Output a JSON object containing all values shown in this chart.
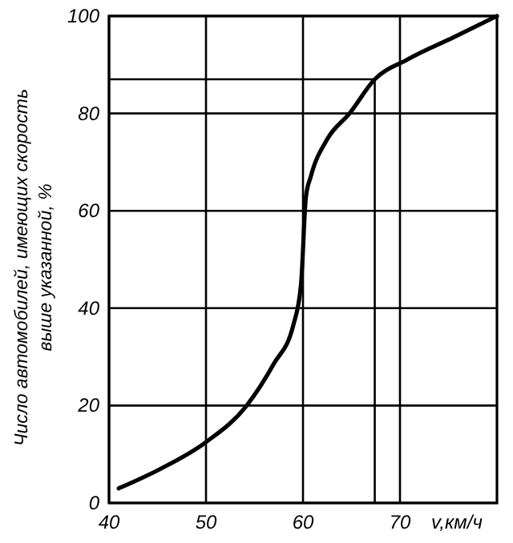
{
  "chart_data": {
    "type": "line",
    "xlabel": "v,км/ч",
    "ylabel": "Число автомобилей, имеющих скорость\nвыше указанной, %",
    "xlim": [
      40,
      80
    ],
    "ylim": [
      0,
      100
    ],
    "xticks": [
      40,
      50,
      60,
      70
    ],
    "yticks": [
      0,
      20,
      40,
      60,
      80,
      100
    ],
    "grid": true,
    "marker": "none",
    "line_style": "solid",
    "ref_lines": [
      {
        "axis": "y",
        "value": 87
      },
      {
        "axis": "x",
        "value": 67.4
      }
    ],
    "series": [
      {
        "color": "#000000",
        "x": [
          41,
          45.3,
          50,
          54.2,
          57,
          59,
          59.8,
          60.3,
          60.8,
          62.5,
          64.8,
          67.4,
          70.7,
          75.6,
          80
        ],
        "values": [
          3,
          7,
          12.5,
          20,
          28.6,
          36.5,
          45,
          62.8,
          67,
          74.7,
          80,
          87,
          91,
          95.7,
          100
        ]
      }
    ]
  }
}
